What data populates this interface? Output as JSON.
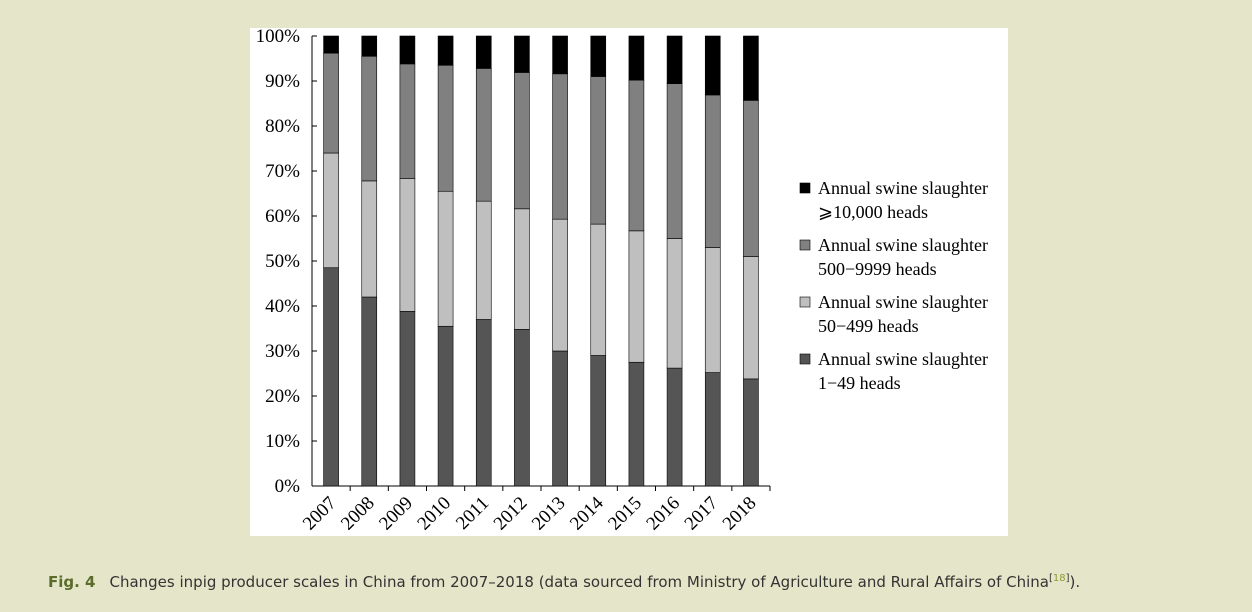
{
  "chart_data": {
    "type": "bar",
    "stacked": true,
    "categories": [
      "2007",
      "2008",
      "2009",
      "2010",
      "2011",
      "2012",
      "2013",
      "2014",
      "2015",
      "2016",
      "2017",
      "2018"
    ],
    "series": [
      {
        "name": "Annual swine slaughter 1–49 heads",
        "legend_lines": [
          "Annual swine slaughter",
          "1−49 heads"
        ],
        "color": "#555555",
        "values": [
          48.5,
          42,
          38.8,
          35.5,
          37,
          34.8,
          30,
          29,
          27.5,
          26.2,
          25.2,
          23.8
        ]
      },
      {
        "name": "Annual swine slaughter 50–499 heads",
        "legend_lines": [
          "Annual swine slaughter",
          "50−499 heads"
        ],
        "color": "#bfbfbf",
        "values": [
          25.5,
          25.8,
          29.5,
          30,
          26.3,
          26.8,
          29.3,
          29.2,
          29.2,
          28.8,
          27.8,
          27.2
        ]
      },
      {
        "name": "Annual swine slaughter 500–9999 heads",
        "legend_lines": [
          "Annual swine slaughter",
          "500−9999 heads"
        ],
        "color": "#808080",
        "values": [
          22.2,
          27.7,
          25.5,
          28,
          29.5,
          30.3,
          32.3,
          32.8,
          33.5,
          34.4,
          33.9,
          34.7
        ]
      },
      {
        "name": "Annual swine slaughter ≥10,000 heads",
        "legend_lines": [
          "Annual swine slaughter",
          "⩾10,000 heads"
        ],
        "color": "#000000",
        "values": [
          3.8,
          4.5,
          6.2,
          6.5,
          7.2,
          8.1,
          8.4,
          9,
          9.8,
          10.6,
          13.1,
          14.3
        ]
      }
    ],
    "legend_order": [
      3,
      2,
      1,
      0
    ],
    "ylim": [
      0,
      100
    ],
    "yticks": [
      "0%",
      "10%",
      "20%",
      "30%",
      "40%",
      "50%",
      "60%",
      "70%",
      "80%",
      "90%",
      "100%"
    ],
    "xlabel": "",
    "ylabel": "",
    "legend_position": "right",
    "grid": false
  },
  "caption": {
    "label": "Fig. 4",
    "text": "Changes inpig producer scales in China from 2007–2018 (data sourced from Ministry of Agriculture and Rural Affairs of China",
    "ref": "18",
    "tail": ")."
  }
}
